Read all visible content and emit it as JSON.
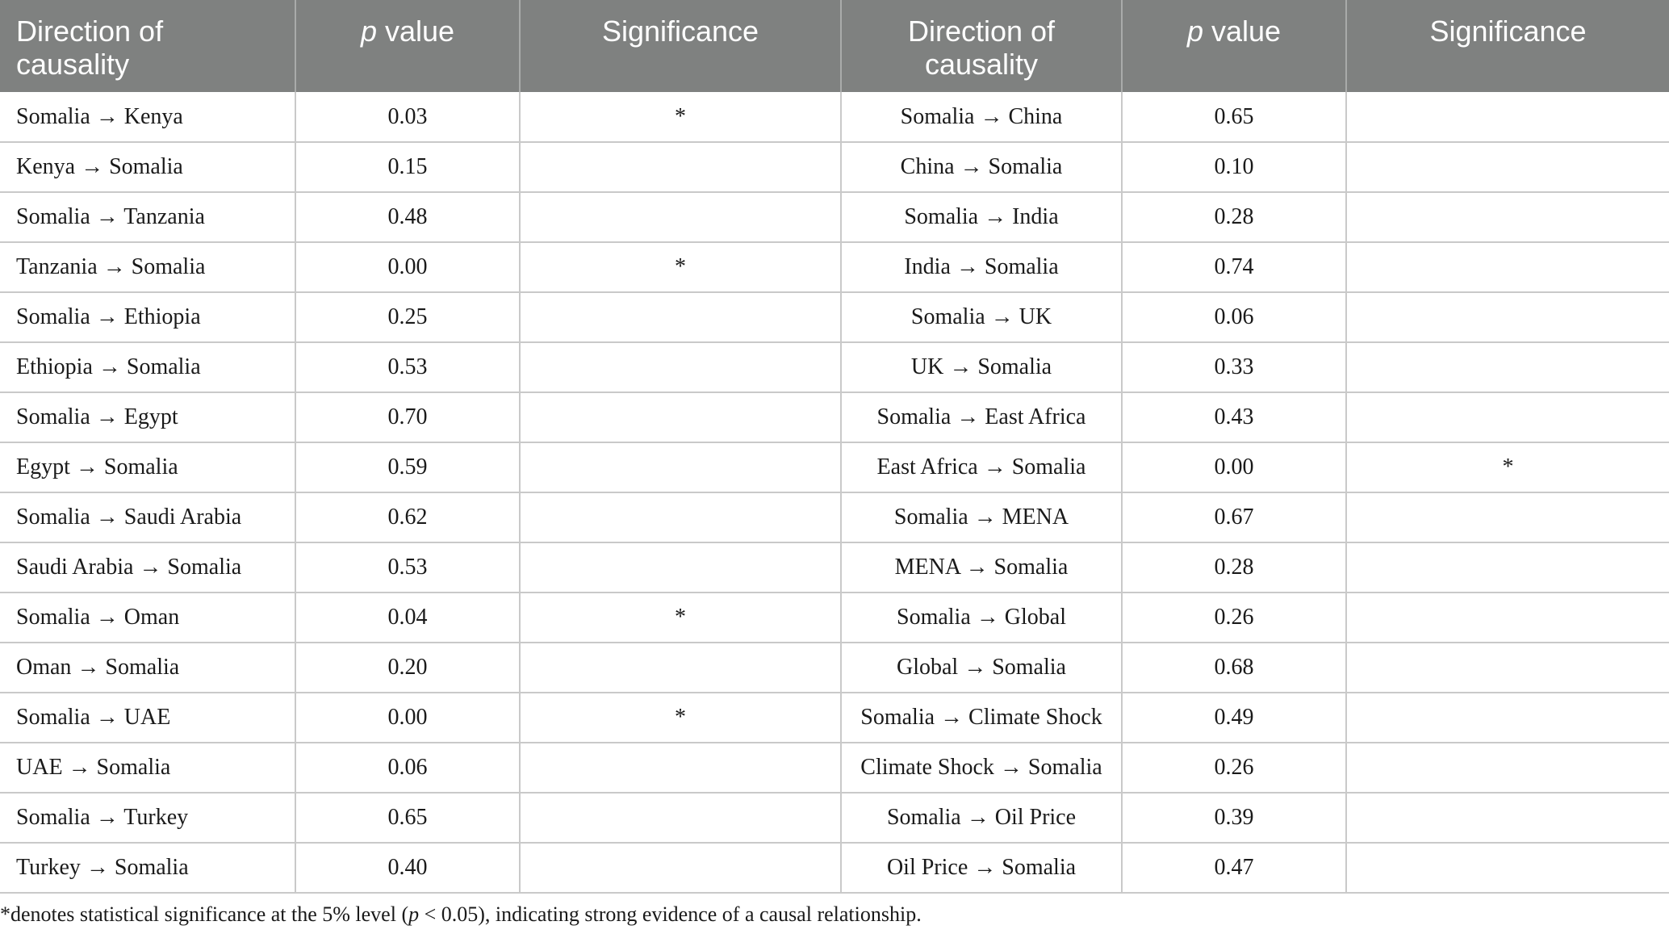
{
  "header": {
    "col1": "Direction of causality",
    "col2_italic": "p",
    "col2_rest": " value",
    "col3": "Significance",
    "col4": "Direction of causality",
    "col5_italic": "p",
    "col5_rest": " value",
    "col6": "Significance"
  },
  "rows": [
    {
      "dir1": "Somalia → Kenya",
      "p1": "0.03",
      "sig1": "*",
      "dir2": "Somalia → China",
      "p2": "0.65",
      "sig2": ""
    },
    {
      "dir1": "Kenya → Somalia",
      "p1": "0.15",
      "sig1": "",
      "dir2": "China → Somalia",
      "p2": "0.10",
      "sig2": ""
    },
    {
      "dir1": "Somalia → Tanzania",
      "p1": "0.48",
      "sig1": "",
      "dir2": "Somalia → India",
      "p2": "0.28",
      "sig2": ""
    },
    {
      "dir1": "Tanzania → Somalia",
      "p1": "0.00",
      "sig1": "*",
      "dir2": "India → Somalia",
      "p2": "0.74",
      "sig2": ""
    },
    {
      "dir1": "Somalia → Ethiopia",
      "p1": "0.25",
      "sig1": "",
      "dir2": "Somalia → UK",
      "p2": "0.06",
      "sig2": ""
    },
    {
      "dir1": "Ethiopia → Somalia",
      "p1": "0.53",
      "sig1": "",
      "dir2": "UK → Somalia",
      "p2": "0.33",
      "sig2": ""
    },
    {
      "dir1": "Somalia → Egypt",
      "p1": "0.70",
      "sig1": "",
      "dir2": "Somalia → East Africa",
      "p2": "0.43",
      "sig2": ""
    },
    {
      "dir1": "Egypt → Somalia",
      "p1": "0.59",
      "sig1": "",
      "dir2": "East Africa → Somalia",
      "p2": "0.00",
      "sig2": "*"
    },
    {
      "dir1": "Somalia → Saudi Arabia",
      "p1": "0.62",
      "sig1": "",
      "dir2": "Somalia → MENA",
      "p2": "0.67",
      "sig2": ""
    },
    {
      "dir1": "Saudi Arabia → Somalia",
      "p1": "0.53",
      "sig1": "",
      "dir2": "MENA → Somalia",
      "p2": "0.28",
      "sig2": ""
    },
    {
      "dir1": "Somalia → Oman",
      "p1": "0.04",
      "sig1": "*",
      "dir2": "Somalia → Global",
      "p2": "0.26",
      "sig2": ""
    },
    {
      "dir1": "Oman → Somalia",
      "p1": "0.20",
      "sig1": "",
      "dir2": "Global → Somalia",
      "p2": "0.68",
      "sig2": ""
    },
    {
      "dir1": "Somalia → UAE",
      "p1": "0.00",
      "sig1": "*",
      "dir2": "Somalia → Climate Shock",
      "p2": "0.49",
      "sig2": ""
    },
    {
      "dir1": "UAE → Somalia",
      "p1": "0.06",
      "sig1": "",
      "dir2": "Climate Shock → Somalia",
      "p2": "0.26",
      "sig2": ""
    },
    {
      "dir1": "Somalia → Turkey",
      "p1": "0.65",
      "sig1": "",
      "dir2": "Somalia → Oil Price",
      "p2": "0.39",
      "sig2": ""
    },
    {
      "dir1": "Turkey → Somalia",
      "p1": "0.40",
      "sig1": "",
      "dir2": "Oil Price → Somalia",
      "p2": "0.47",
      "sig2": ""
    }
  ],
  "footnote": {
    "pre": "*denotes statistical significance at the 5% level (",
    "italic": "p",
    "post": " < 0.05), indicating strong evidence of a causal relationship."
  }
}
